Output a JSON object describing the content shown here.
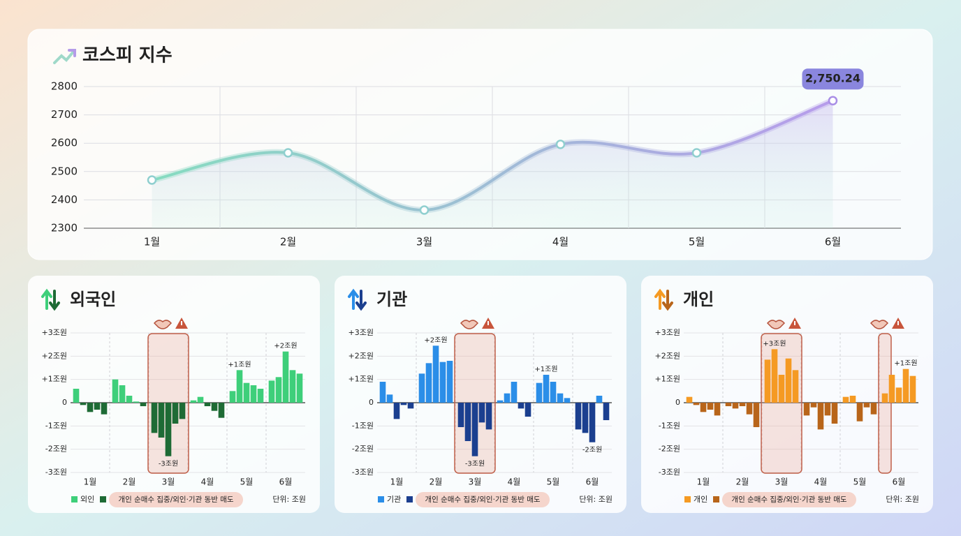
{
  "chart_data": [
    {
      "type": "line",
      "title": "코스피 지수",
      "categories": [
        "1월",
        "2월",
        "3월",
        "4월",
        "5월",
        "6월"
      ],
      "values": [
        2470,
        2566,
        2364,
        2596,
        2566,
        2750.24
      ],
      "value_labels": [
        null,
        null,
        null,
        null,
        null,
        "2,750.24"
      ],
      "ylim": [
        2300,
        2800
      ],
      "yticks": [
        2300,
        2400,
        2500,
        2600,
        2700,
        2800
      ],
      "grid": true,
      "colors": [
        "#86dcc0",
        "#b79ceb"
      ]
    },
    {
      "type": "bar",
      "title": "외국인",
      "categories": [
        "1월",
        "2월",
        "3월",
        "4월",
        "5월",
        "6월"
      ],
      "values": [
        [
          0.6,
          -0.1,
          -0.4,
          -0.3,
          -0.5
        ],
        [
          1.0,
          0.75,
          0.3,
          0.05,
          -0.15
        ],
        [
          -1.3,
          -1.5,
          -2.3,
          -0.9,
          -0.7
        ],
        [
          0.1,
          0.25,
          -0.15,
          -0.35,
          -0.65
        ],
        [
          0.5,
          1.4,
          0.85,
          0.75,
          0.6
        ],
        [
          0.95,
          1.1,
          2.2,
          1.4,
          1.25
        ]
      ],
      "ylim": [
        -3,
        3
      ],
      "yticks": [
        {
          "value": 3,
          "label": "+3조원"
        },
        {
          "value": 2,
          "label": "+2조원"
        },
        {
          "value": 1,
          "label": "+1조원"
        },
        0,
        {
          "value": -1,
          "label": "-1조원"
        },
        {
          "value": -2,
          "label": "-2조원"
        },
        {
          "value": -3,
          "label": "-3조원"
        }
      ],
      "colors": {
        "positive": "#3ecf7a",
        "negative": "#1e6b35"
      },
      "legend": "외인",
      "note": "개인 순매수 집중/외인·기관 동반 매도",
      "unit": "단위: 조원",
      "annotations": [
        {
          "text": "-3조원",
          "month": 2,
          "bar": 2
        },
        {
          "text": "+1조원",
          "month": 4,
          "bar": 1
        },
        {
          "text": "+2조원",
          "month": 5,
          "bar": 2
        }
      ],
      "highlights": [
        {
          "month": 2,
          "first": 0,
          "last": 4
        }
      ]
    },
    {
      "type": "bar",
      "title": "기관",
      "categories": [
        "1월",
        "2월",
        "3월",
        "4월",
        "5월",
        "6월"
      ],
      "values": [
        [
          0.9,
          0.35,
          -0.7,
          -0.1,
          -0.25
        ],
        [
          1.25,
          1.7,
          2.45,
          1.75,
          1.8
        ],
        [
          -1.05,
          -1.65,
          -2.3,
          -0.85,
          -1.15
        ],
        [
          0.1,
          0.4,
          0.9,
          -0.25,
          -0.6
        ],
        [
          0.85,
          1.2,
          0.9,
          0.4,
          0.2
        ],
        [
          -1.15,
          -1.3,
          -1.7,
          0.3,
          -0.75
        ]
      ],
      "ylim": [
        -3,
        3
      ],
      "yticks": [
        {
          "value": 3,
          "label": "+3조원"
        },
        {
          "value": 2,
          "label": "+2조원"
        },
        {
          "value": 1,
          "label": "+1조원"
        },
        0,
        {
          "value": -1,
          "label": "-1조원"
        },
        {
          "value": -2,
          "label": "-2조원"
        },
        {
          "value": -3,
          "label": "-3조원"
        }
      ],
      "colors": {
        "positive": "#2b8ee8",
        "negative": "#1b3f8f"
      },
      "legend": "기관",
      "note": "개인 순매수 집중/외인·기관 동반 매도",
      "unit": "단위: 조원",
      "annotations": [
        {
          "text": "+2조원",
          "month": 1,
          "bar": 2
        },
        {
          "text": "-3조원",
          "month": 2,
          "bar": 2
        },
        {
          "text": "+1조원",
          "month": 4,
          "bar": 1
        },
        {
          "text": "-2조원",
          "month": 5,
          "bar": 2
        }
      ],
      "highlights": [
        {
          "month": 2,
          "first": 0,
          "last": 4
        }
      ]
    },
    {
      "type": "bar",
      "title": "개인",
      "categories": [
        "1월",
        "2월",
        "3월",
        "4월",
        "5월",
        "6월"
      ],
      "values": [
        [
          0.25,
          -0.1,
          -0.4,
          -0.3,
          -0.55
        ],
        [
          -0.15,
          -0.25,
          -0.15,
          -0.5,
          -1.05
        ],
        [
          1.85,
          2.3,
          1.2,
          1.9,
          1.4
        ],
        [
          -0.55,
          -0.2,
          -1.15,
          -0.55,
          -0.9
        ],
        [
          0.25,
          0.3,
          -0.8,
          -0.2,
          -0.5
        ],
        [
          0.4,
          1.2,
          0.65,
          1.45,
          1.15
        ]
      ],
      "ylim": [
        -3,
        3
      ],
      "yticks": [
        {
          "value": 3,
          "label": "+3조원"
        },
        {
          "value": 2,
          "label": "+2조원"
        },
        {
          "value": 1,
          "label": "+1조원"
        },
        0,
        {
          "value": -1,
          "label": "-1조원"
        },
        {
          "value": -2,
          "label": "-2조원"
        },
        {
          "value": -3,
          "label": "-3조원"
        }
      ],
      "colors": {
        "positive": "#f59a23",
        "negative": "#b8651a"
      },
      "legend": "개인",
      "note": "개인 순매수 집중/외인·기관 동반 매도",
      "unit": "단위: 조원",
      "annotations": [
        {
          "text": "+3조원",
          "month": 2,
          "bar": 1
        },
        {
          "text": "+1조원",
          "month": 5,
          "bar": 3
        }
      ],
      "highlights": [
        {
          "month": 2,
          "first": 0,
          "last": 4
        },
        {
          "month": 5,
          "first": 0,
          "last": 0
        }
      ]
    }
  ]
}
